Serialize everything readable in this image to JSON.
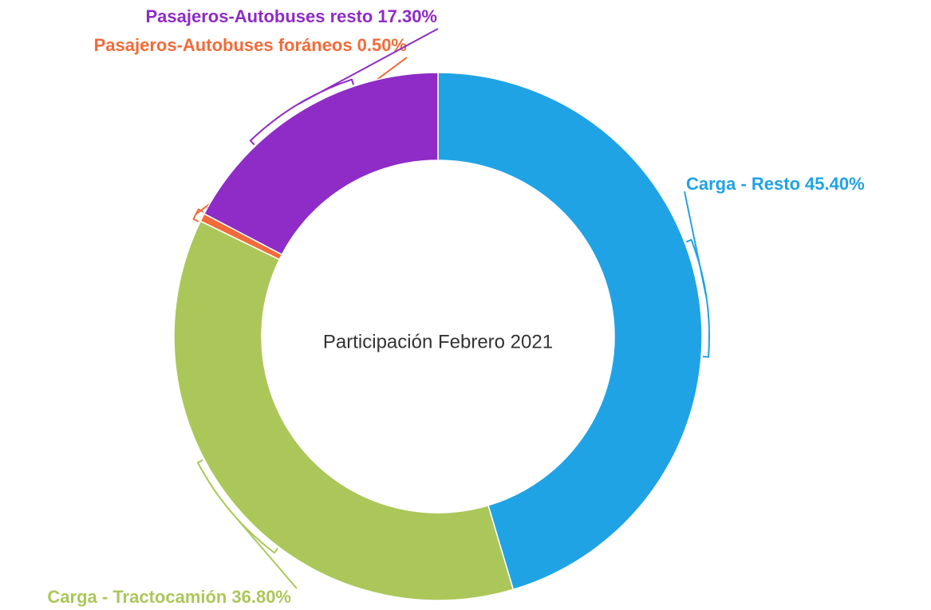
{
  "chart_data": {
    "type": "donut",
    "title": "Participación Febrero 2021",
    "categories": [
      "Carga - Resto",
      "Carga - Tractocamión",
      "Pasajeros-Autobuses foráneos",
      "Pasajeros-Autobuses resto"
    ],
    "values": [
      45.4,
      36.8,
      0.5,
      17.3
    ],
    "value_labels": [
      "45.40%",
      "36.80%",
      "0.50%",
      "17.30%"
    ],
    "colors": [
      "#20a3e5",
      "#abc75a",
      "#f26b38",
      "#8f2bc6"
    ]
  }
}
